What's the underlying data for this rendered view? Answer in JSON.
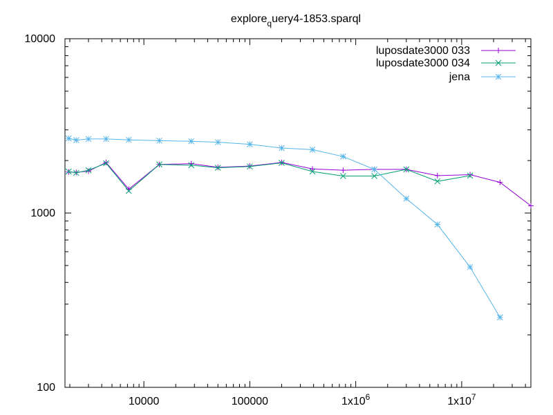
{
  "chart_data": {
    "type": "line",
    "title_main": "explore",
    "title_sub": "q",
    "title_rest": "uery4-1853.sparql",
    "xlabel": "",
    "ylabel": "",
    "x_scale": "log",
    "y_scale": "log",
    "xlim": [
      1800,
      45000000
    ],
    "ylim": [
      100,
      10000
    ],
    "grid": false,
    "legend_position": "top-right",
    "x_ticks": [
      {
        "value": 10000,
        "label": "10000",
        "sup": ""
      },
      {
        "value": 100000,
        "label": "100000",
        "sup": ""
      },
      {
        "value": 1000000,
        "label": "1x10",
        "sup": "6"
      },
      {
        "value": 10000000,
        "label": "1x10",
        "sup": "7"
      }
    ],
    "y_ticks": [
      {
        "value": 100,
        "label": "100"
      },
      {
        "value": 1000,
        "label": "1000"
      },
      {
        "value": 10000,
        "label": "10000"
      }
    ],
    "series": [
      {
        "name": "luposdate3000 033",
        "color": "#9400d3",
        "marker": "plus",
        "points": [
          [
            1950,
            1720
          ],
          [
            2300,
            1710
          ],
          [
            3000,
            1740
          ],
          [
            4400,
            1950
          ],
          [
            7200,
            1370
          ],
          [
            14000,
            1900
          ],
          [
            28000,
            1920
          ],
          [
            50000,
            1830
          ],
          [
            100000,
            1860
          ],
          [
            200000,
            1950
          ],
          [
            390000,
            1790
          ],
          [
            760000,
            1760
          ],
          [
            1500000,
            1780
          ],
          [
            3000000,
            1780
          ],
          [
            5900000,
            1640
          ],
          [
            12000000,
            1660
          ],
          [
            23000000,
            1500
          ],
          [
            46000000,
            1100
          ]
        ]
      },
      {
        "name": "luposdate3000 034",
        "color": "#009e73",
        "marker": "cross",
        "points": [
          [
            1950,
            1730
          ],
          [
            2300,
            1700
          ],
          [
            3000,
            1760
          ],
          [
            4400,
            1930
          ],
          [
            7200,
            1340
          ],
          [
            14000,
            1900
          ],
          [
            28000,
            1880
          ],
          [
            50000,
            1820
          ],
          [
            100000,
            1850
          ],
          [
            200000,
            1940
          ],
          [
            390000,
            1730
          ],
          [
            760000,
            1630
          ],
          [
            1500000,
            1630
          ],
          [
            3000000,
            1780
          ],
          [
            5900000,
            1520
          ],
          [
            12000000,
            1640
          ]
        ]
      },
      {
        "name": "jena",
        "color": "#56b4e9",
        "marker": "star",
        "points": [
          [
            1950,
            2680
          ],
          [
            2300,
            2620
          ],
          [
            3000,
            2660
          ],
          [
            4400,
            2660
          ],
          [
            7200,
            2630
          ],
          [
            14000,
            2600
          ],
          [
            28000,
            2580
          ],
          [
            50000,
            2550
          ],
          [
            100000,
            2480
          ],
          [
            200000,
            2360
          ],
          [
            390000,
            2310
          ],
          [
            760000,
            2110
          ],
          [
            1500000,
            1780
          ],
          [
            3000000,
            1210
          ],
          [
            5900000,
            860
          ],
          [
            12000000,
            490
          ],
          [
            23000000,
            252
          ]
        ]
      }
    ]
  }
}
